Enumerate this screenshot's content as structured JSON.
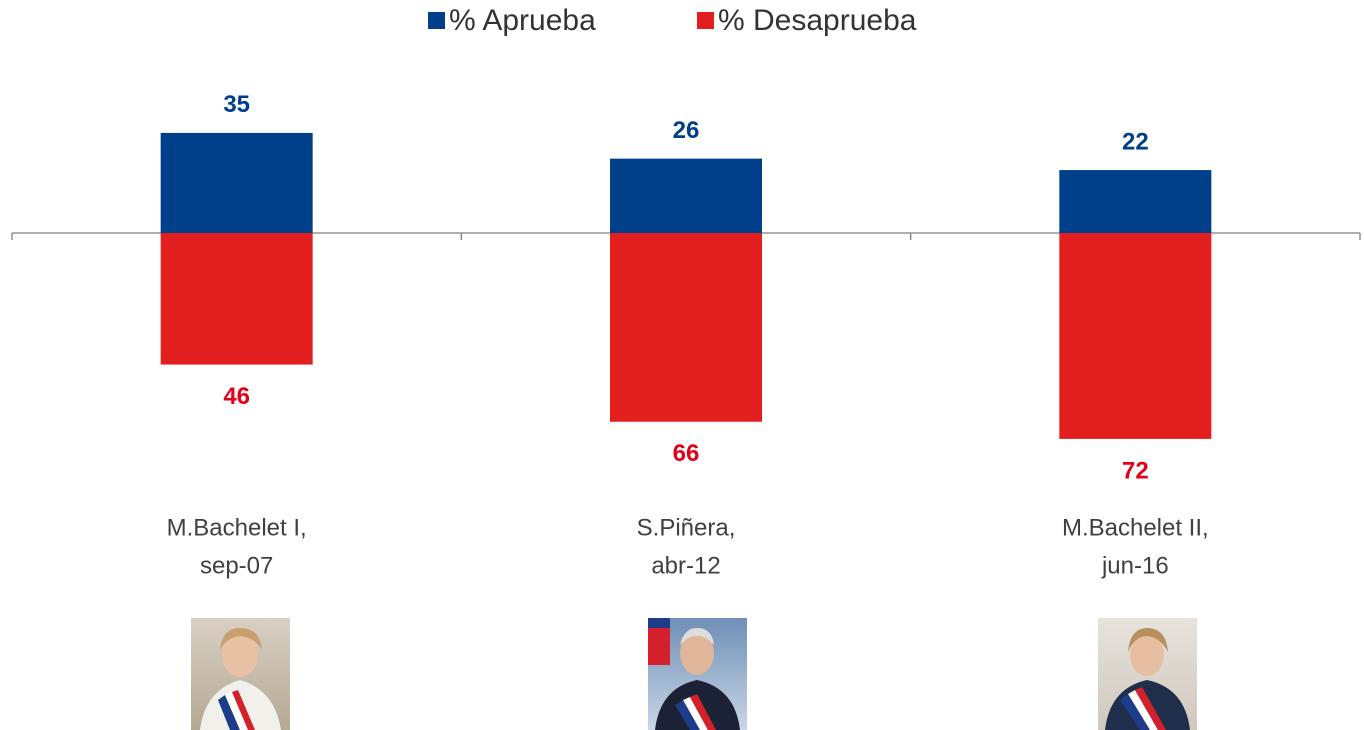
{
  "chart_data": {
    "type": "diverging-bar",
    "categories": [
      [
        "M.Bachelet I,",
        "sep-07"
      ],
      [
        "S.Piñera,",
        "abr-12"
      ],
      [
        "M.Bachelet II,",
        "jun-16"
      ]
    ],
    "series": [
      {
        "name": "% Aprueba",
        "color": "#00408a",
        "label_color": "#003f87",
        "side": "above",
        "values": [
          35,
          26,
          22
        ]
      },
      {
        "name": "% Desaprueba",
        "color": "#e31e1e",
        "label_color": "#e2001a",
        "side": "below",
        "values": [
          46,
          66,
          72
        ]
      }
    ],
    "legend": "top"
  }
}
